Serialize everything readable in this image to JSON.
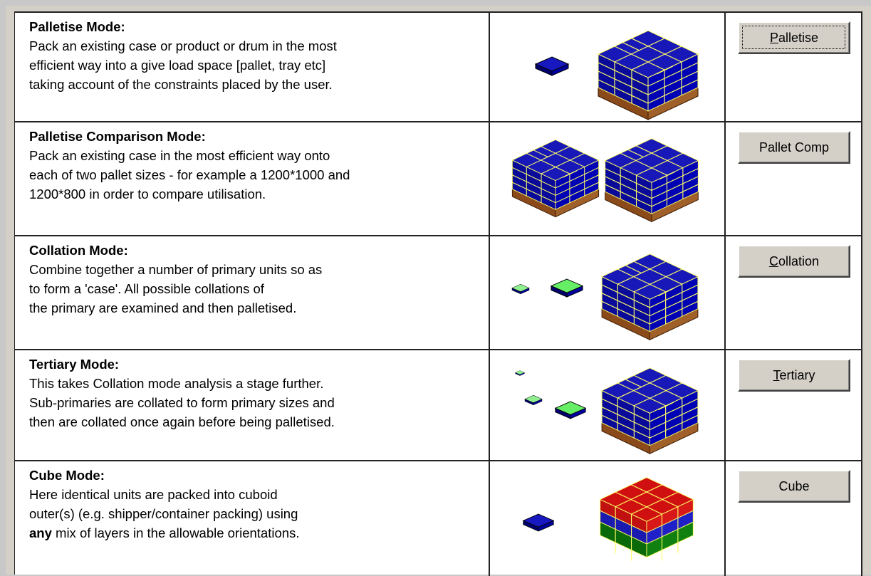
{
  "rows": [
    {
      "title": "Palletise Mode:",
      "lines": [
        "Pack an existing case or product or drum in the most",
        "efficient way into a give load space [pallet, tray etc]",
        "taking account of the constraints placed by the user."
      ],
      "button": "Palletise"
    },
    {
      "title": "Palletise Comparison Mode:",
      "lines": [
        "Pack an existing case in the most efficient way onto",
        "each of two pallet sizes - for example a 1200*1000 and",
        "1200*800 in order to compare utilisation."
      ],
      "button": "Pallet Comp"
    },
    {
      "title": "Collation Mode:",
      "lines": [
        "Combine together a number of primary units so as",
        "to form a 'case'. All possible collations of",
        "the primary are examined and then palletised."
      ],
      "button": "Collation"
    },
    {
      "title": "Tertiary Mode:",
      "lines": [
        "This takes Collation mode analysis a stage further.",
        "Sub-primaries are collated to form primary sizes and",
        "then are collated once again before being palletised."
      ],
      "button": "Tertiary"
    },
    {
      "title": "Cube Mode:",
      "lines": [
        "Here identical units are packed into cuboid",
        "outer(s) (e.g. shipper/container packing) using"
      ],
      "emphasis": "any",
      "tail": "mix of layers in the allowable orientations.",
      "button": "Cube"
    }
  ]
}
